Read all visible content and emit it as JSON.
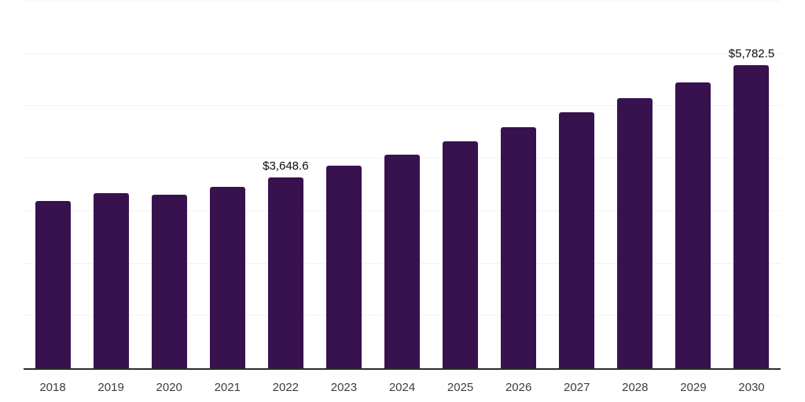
{
  "chart_data": {
    "type": "bar",
    "title": "",
    "xlabel": "",
    "ylabel": "",
    "categories": [
      "2018",
      "2019",
      "2020",
      "2021",
      "2022",
      "2023",
      "2024",
      "2025",
      "2026",
      "2027",
      "2028",
      "2029",
      "2030"
    ],
    "values": [
      3195,
      3350,
      3320,
      3460,
      3648.6,
      3870,
      4080,
      4330,
      4600,
      4890,
      5155,
      5455,
      5782.5
    ],
    "data_labels": [
      "",
      "",
      "",
      "",
      "$3,648.6",
      "",
      "",
      "",
      "",
      "",
      "",
      "",
      "$5,782.5"
    ],
    "ylim": [
      0,
      7000
    ],
    "gridline_interval": 1000,
    "grid": true,
    "y_tick_labels_visible": false,
    "legend_position": "none",
    "colors": {
      "bar": "#38124f",
      "grid": "#f2f2f2",
      "axis_line": "#2b2b2b",
      "tick_label": "#3d3d3d",
      "data_label": "#0a0a0a",
      "background": "#ffffff"
    }
  }
}
